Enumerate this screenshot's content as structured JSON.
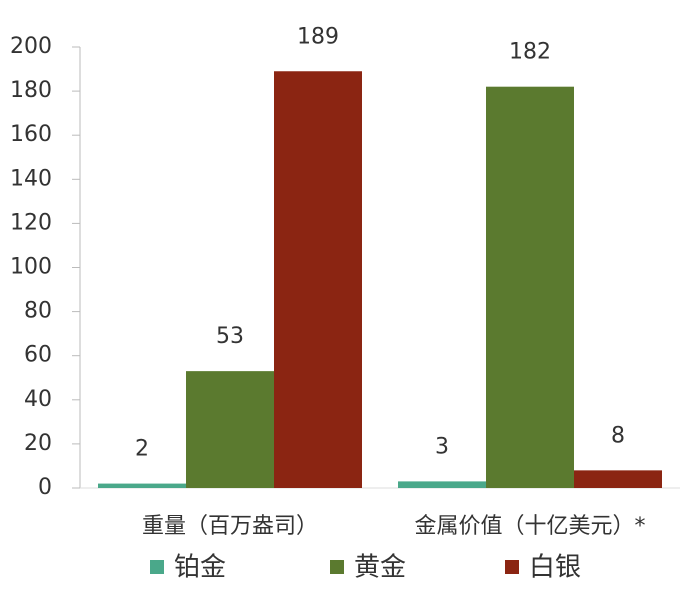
{
  "chart_data": {
    "type": "bar",
    "categories": [
      "重量（百万盎司）",
      "金属价值（十亿美元）*"
    ],
    "series": [
      {
        "name": "铂金",
        "color": "#4aa88a",
        "values": [
          2,
          3
        ]
      },
      {
        "name": "黄金",
        "color": "#5b7a2f",
        "values": [
          53,
          182
        ]
      },
      {
        "name": "白银",
        "color": "#8b2512",
        "values": [
          189,
          8
        ]
      }
    ],
    "ylim": [
      0,
      200
    ],
    "yticks": [
      0,
      20,
      40,
      60,
      80,
      100,
      120,
      140,
      160,
      180,
      200
    ],
    "grid": false,
    "legend": "bottom"
  }
}
